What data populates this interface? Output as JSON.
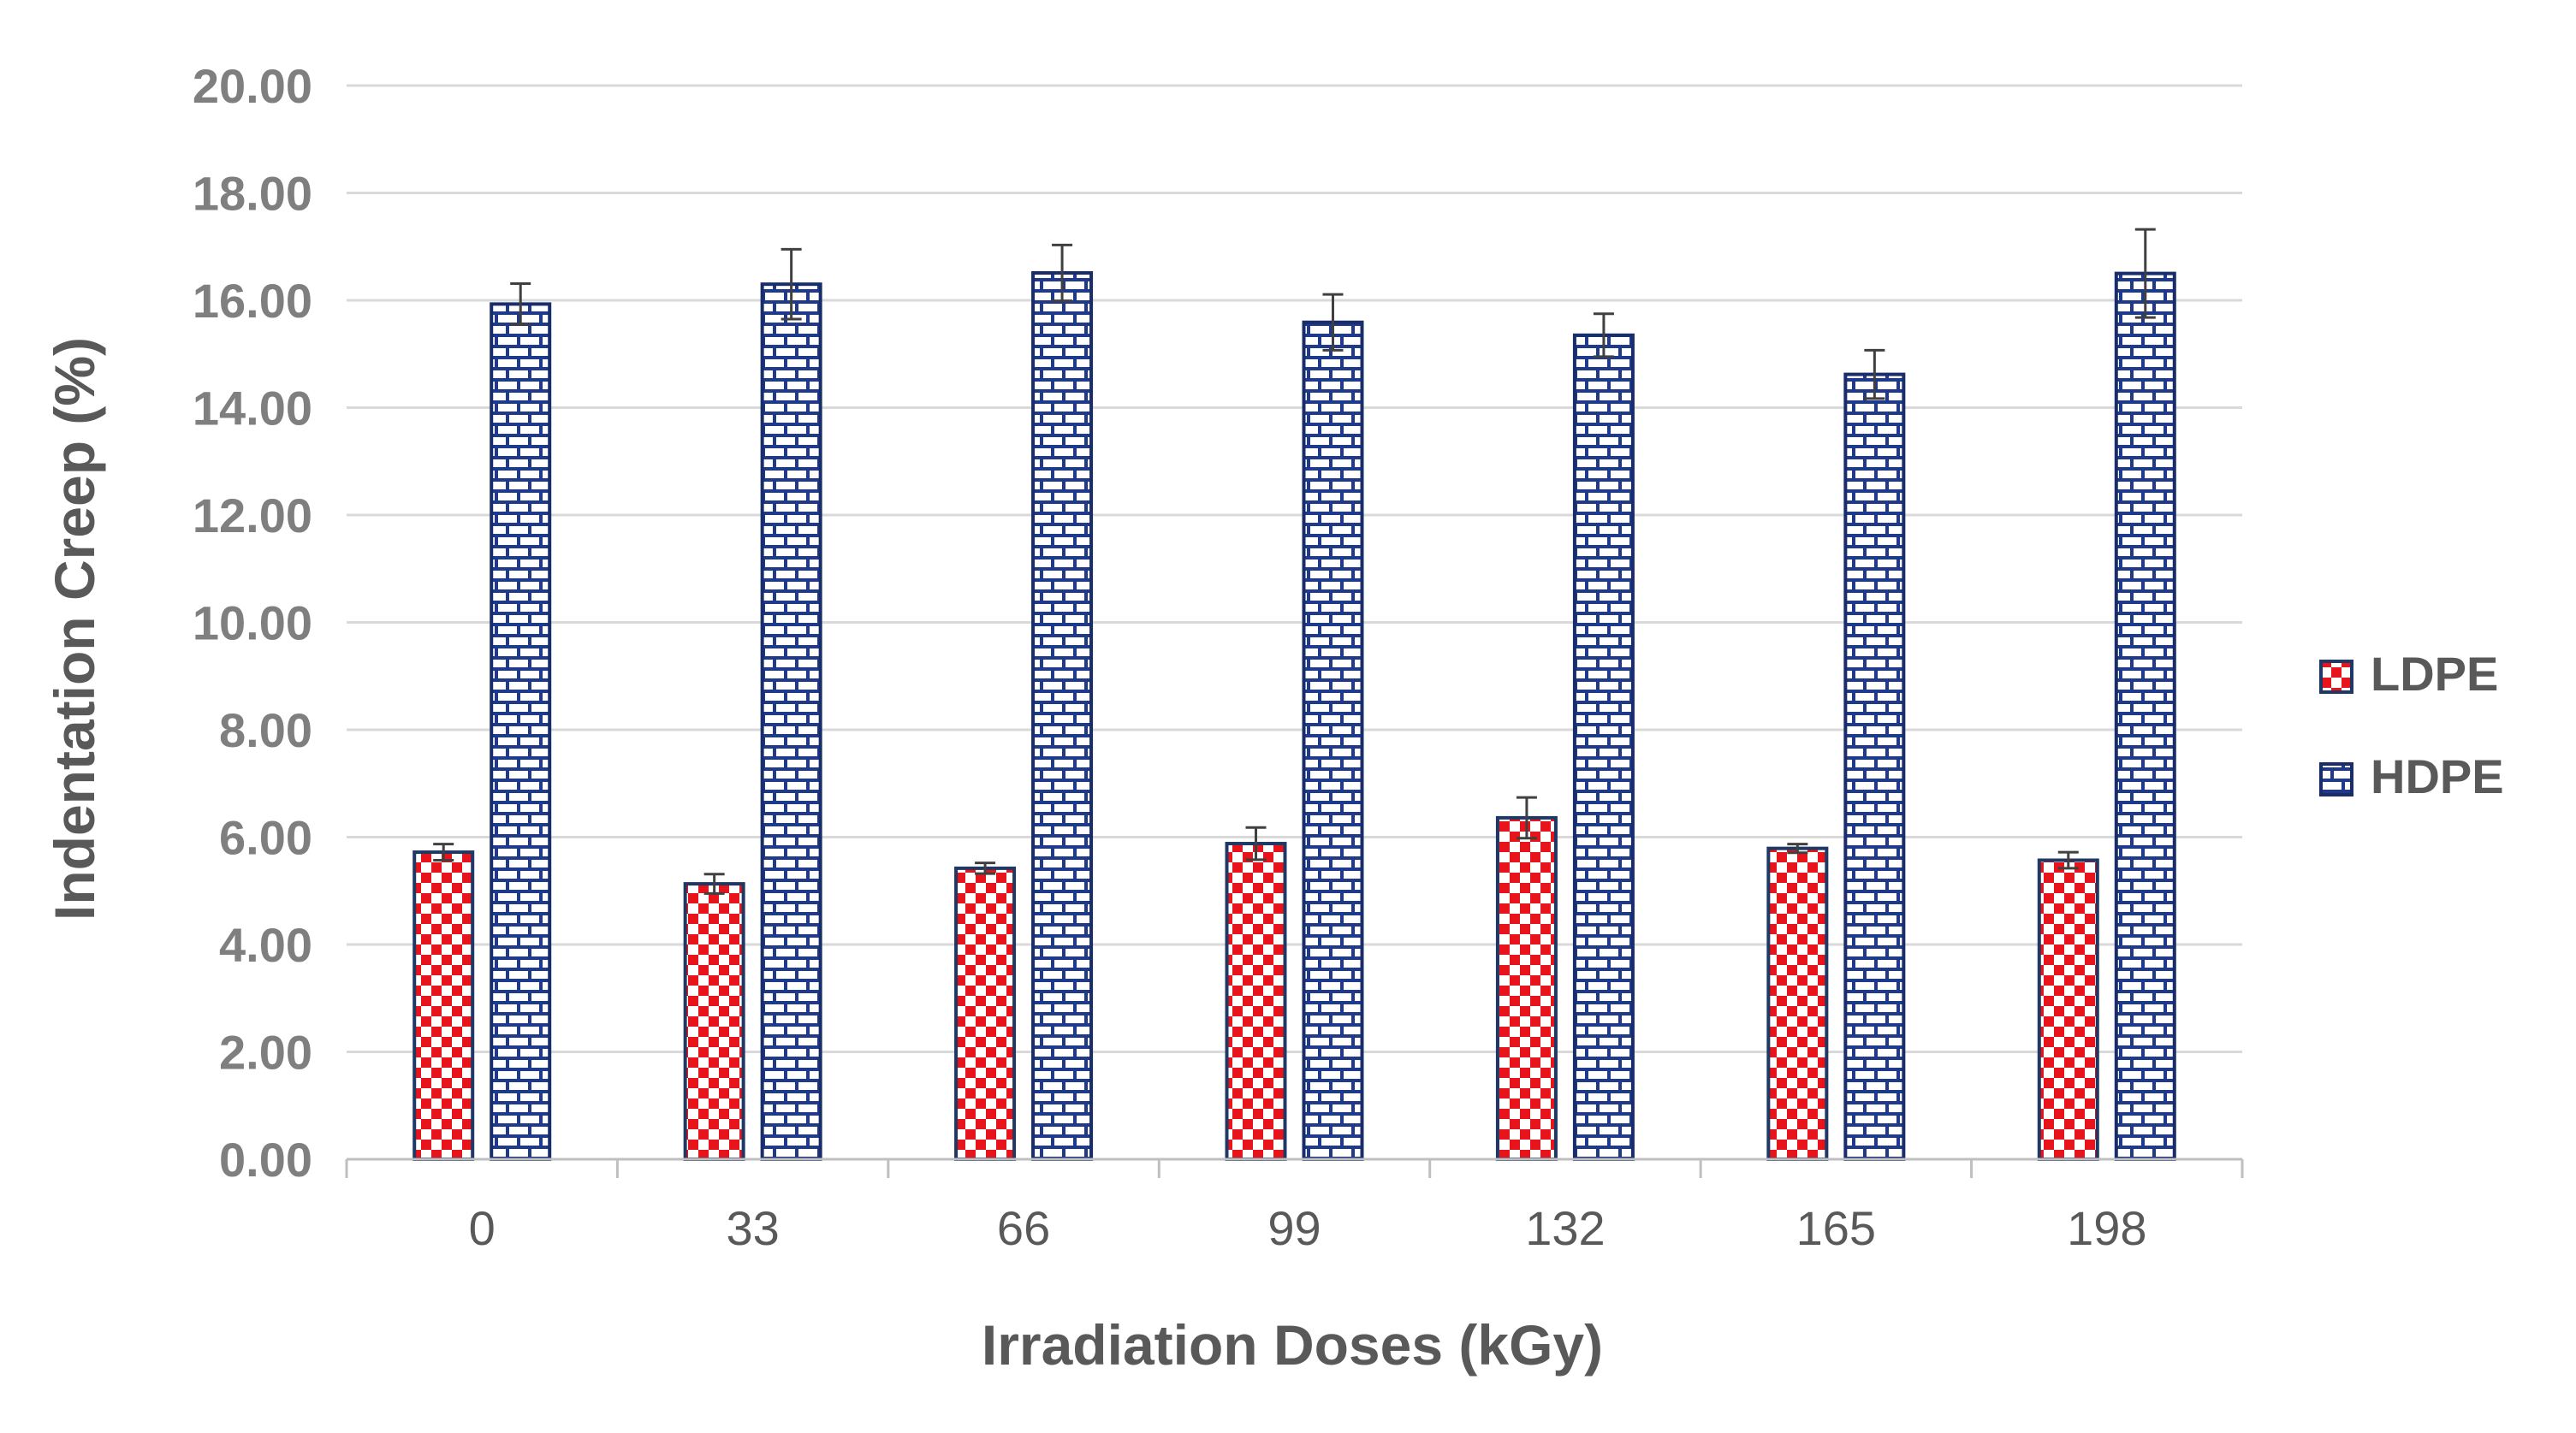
{
  "chart_data": {
    "type": "bar",
    "title": "",
    "xlabel": "Irradiation Doses (kGy)",
    "ylabel": "Indentation Creep (%)",
    "categories": [
      "0",
      "33",
      "66",
      "99",
      "132",
      "165",
      "198"
    ],
    "ylim": [
      0,
      20
    ],
    "ytick_step": 2,
    "ytick_labels": [
      "0.00",
      "2.00",
      "4.00",
      "6.00",
      "8.00",
      "10.00",
      "12.00",
      "14.00",
      "16.00",
      "18.00",
      "20.00"
    ],
    "grid": true,
    "legend_position": "right",
    "series": [
      {
        "name": "LDPE",
        "pattern": "checkerboard",
        "color": "#e8141c",
        "edge_color": "#1f3864",
        "values": [
          5.72,
          5.13,
          5.42,
          5.88,
          6.36,
          5.79,
          5.57
        ],
        "errors": [
          0.15,
          0.18,
          0.1,
          0.3,
          0.38,
          0.08,
          0.15
        ]
      },
      {
        "name": "HDPE",
        "pattern": "brick",
        "color": "#1f3a8a",
        "edge_color": "#1a2d6b",
        "values": [
          15.93,
          16.3,
          16.51,
          15.59,
          15.35,
          14.62,
          16.5
        ],
        "errors": [
          0.38,
          0.65,
          0.52,
          0.52,
          0.4,
          0.45,
          0.82
        ]
      }
    ]
  }
}
